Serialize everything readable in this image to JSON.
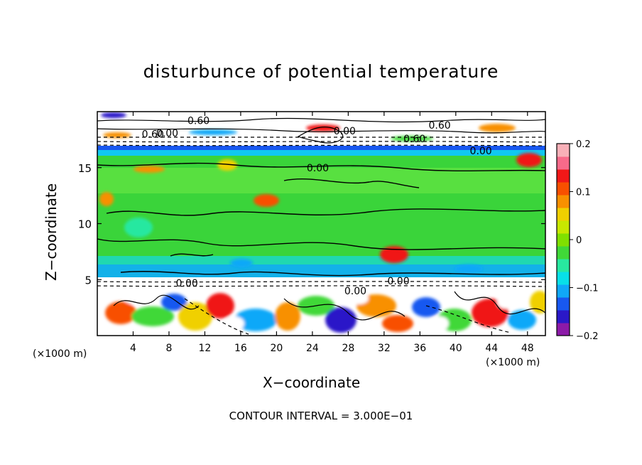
{
  "chart_data": {
    "type": "heatmap",
    "title": "disturbunce of potential temperature",
    "xlabel": "X−coordinate",
    "ylabel": "Z−coordinate",
    "x_unit_label_left": "(×1000 m)",
    "x_unit_label_right": "(×1000 m)",
    "x_ticks": [
      "4",
      "8",
      "12",
      "16",
      "20",
      "24",
      "28",
      "32",
      "36",
      "40",
      "44",
      "48"
    ],
    "y_ticks": [
      "5",
      "10",
      "15"
    ],
    "xlim": [
      0,
      50
    ],
    "ylim": [
      0,
      20
    ],
    "colorbar": {
      "range": [
        -0.2,
        0.2
      ],
      "tick_labels": [
        "0.2",
        "0.1",
        "0",
        "−0.1",
        "−0.2"
      ],
      "colors": [
        "#8c1aa8",
        "#2a18c8",
        "#1858f0",
        "#10a8f8",
        "#08e0e8",
        "#28e8a0",
        "#40d838",
        "#80e000",
        "#c8e800",
        "#f0d000",
        "#f89000",
        "#f85000",
        "#f01818",
        "#f86a8a",
        "#f8b0b8"
      ]
    },
    "contour_labels": [
      {
        "text": "0.60",
        "x": 11.3,
        "z": 19.2
      },
      {
        "text": "0.00",
        "x": 7.8,
        "z": 18.1
      },
      {
        "text": "0.60",
        "x": 6.2,
        "z": 18.0
      },
      {
        "text": "0.00",
        "x": 27.6,
        "z": 18.3
      },
      {
        "text": "0.60",
        "x": 35.4,
        "z": 17.6
      },
      {
        "text": "0.60",
        "x": 38.2,
        "z": 18.8
      },
      {
        "text": "0.00",
        "x": 42.8,
        "z": 16.5
      },
      {
        "text": "0.00",
        "x": 24.6,
        "z": 15.0
      },
      {
        "text": "0.00",
        "x": 10.0,
        "z": 4.7
      },
      {
        "text": "0.00",
        "x": 28.8,
        "z": 4.0
      },
      {
        "text": "0.00",
        "x": 33.6,
        "z": 4.9
      }
    ],
    "contour_interval_note": "CONTOUR INTERVAL = 3.000E−01"
  }
}
